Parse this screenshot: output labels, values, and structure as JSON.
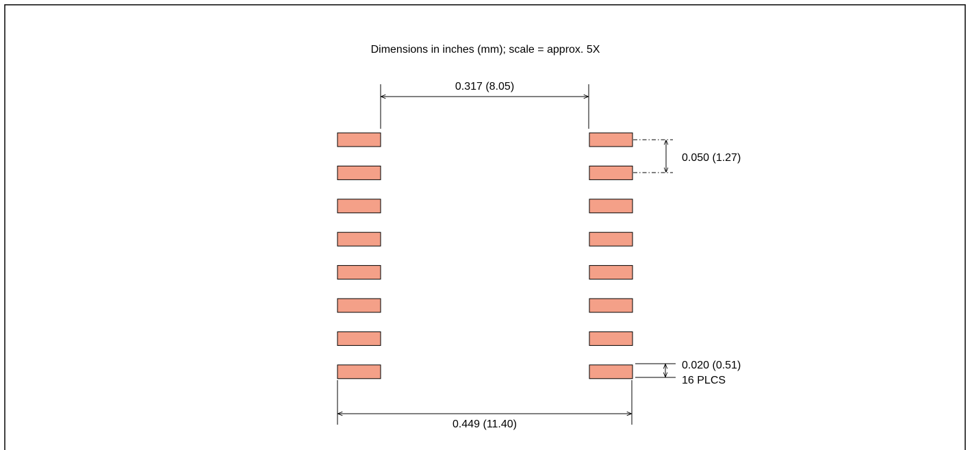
{
  "title": "Dimensions in inches (mm); scale = approx. 5X",
  "dimensions": {
    "inner_span": "0.317 (8.05)",
    "outer_span": "0.449 (11.40)",
    "pitch": "0.050 (1.27)",
    "pad_width": "0.020 (0.51)",
    "pad_count": "16 PLCS"
  },
  "pads": {
    "count_per_side": 8,
    "total": 16
  },
  "colors": {
    "pad_fill": "#F4A088",
    "line": "#000000",
    "background": "#FFFFFF"
  }
}
